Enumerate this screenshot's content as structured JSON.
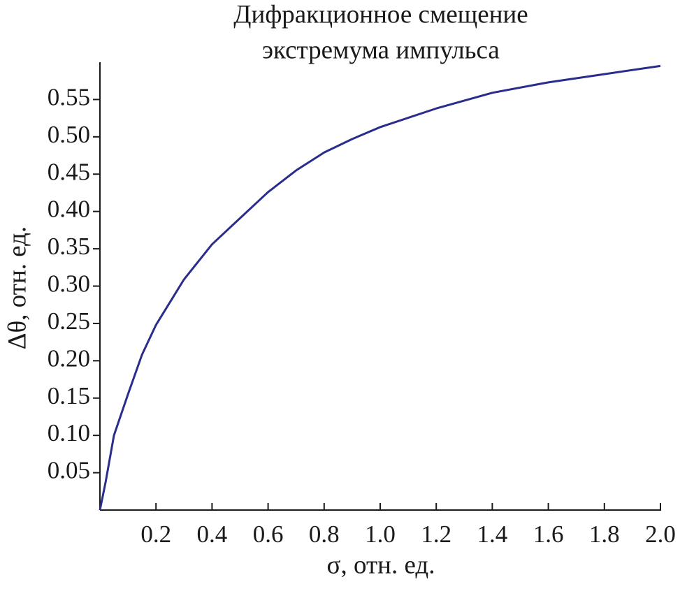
{
  "chart_data": {
    "type": "line",
    "title": [
      "Дифракционное смещение",
      "экстремума импульса"
    ],
    "x_label": "σ, отн. ед.",
    "y_label": "Δθ, отн. ед.",
    "x": [
      0,
      0.02,
      0.05,
      0.1,
      0.15,
      0.2,
      0.3,
      0.4,
      0.5,
      0.6,
      0.7,
      0.8,
      0.9,
      1.0,
      1.2,
      1.4,
      1.6,
      1.8,
      2.0
    ],
    "series": [
      {
        "color": "#2b2d8c",
        "values": [
          0,
          0.037,
          0.1,
          0.155,
          0.208,
          0.248,
          0.309,
          0.356,
          0.391,
          0.426,
          0.455,
          0.479,
          0.497,
          0.513,
          0.538,
          0.559,
          0.573,
          0.584,
          0.595
        ]
      }
    ],
    "xlim": [
      0,
      2.0
    ],
    "ylim": [
      0,
      0.6
    ],
    "xticks": [
      0.2,
      0.4,
      0.6,
      0.8,
      {
        "value": 1.0,
        "label": "1.0"
      },
      1.2,
      1.4,
      1.6,
      1.8,
      {
        "value": 2.0,
        "label": "2.0"
      }
    ],
    "yticks": [
      0.05,
      {
        "value": 0.1,
        "label": "0.10"
      },
      0.15,
      {
        "value": 0.2,
        "label": "0.20"
      },
      0.25,
      {
        "value": 0.3,
        "label": "0.30"
      },
      0.35,
      {
        "value": 0.4,
        "label": "0.40"
      },
      0.45,
      {
        "value": 0.5,
        "label": "0.50"
      },
      0.55
    ],
    "grid": false
  }
}
